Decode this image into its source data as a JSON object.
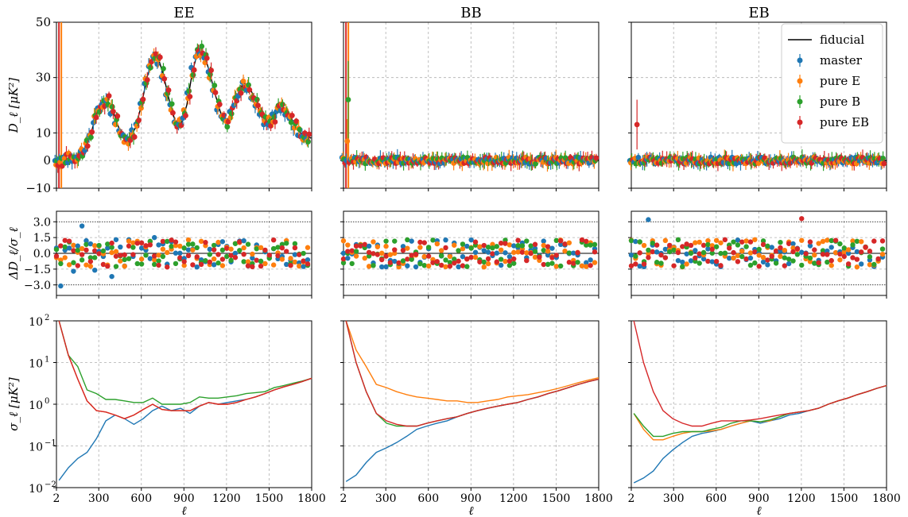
{
  "colors": {
    "master": "#1f77b4",
    "pureE": "#ff7f0e",
    "pureB": "#2ca02c",
    "pureEB": "#d62728",
    "fiducial": "#000000",
    "grid": "#b0b0b0"
  },
  "columns": [
    "EE",
    "BB",
    "EB"
  ],
  "xaxis": {
    "label": "ℓ",
    "ticks": [
      2,
      300,
      600,
      900,
      1200,
      1500,
      1800
    ],
    "range": [
      2,
      1800
    ]
  },
  "rows": {
    "spectrum": {
      "ylabel": "D_ℓ [μK²]",
      "ylim": [
        -10,
        50
      ],
      "ticks": [
        -10,
        0,
        10,
        30,
        50
      ]
    },
    "residual": {
      "ylabel": "ΔD_ℓ/σ_ℓ",
      "ylim": [
        -4,
        4
      ],
      "ticks": [
        -3.0,
        -1.5,
        0.0,
        1.5,
        3.0
      ]
    },
    "error": {
      "ylabel": "σ_ℓ [μK²]",
      "scale": "log",
      "ylim": [
        0.01,
        100
      ],
      "ticks": [
        "10^-2",
        "10^-1",
        "10^0",
        "10^1",
        "10^2"
      ]
    }
  },
  "legend": {
    "placement": "top-right of EB panel",
    "entries": [
      "fiducial",
      "master",
      "pure E",
      "pure B",
      "pure EB"
    ]
  },
  "chart_data": {
    "type": "scatter",
    "ell": [
      2,
      32,
      62,
      92,
      122,
      152,
      182,
      212,
      242,
      272,
      302,
      332,
      362,
      392,
      422,
      452,
      482,
      512,
      542,
      572,
      602,
      632,
      662,
      692,
      722,
      752,
      782,
      812,
      842,
      872,
      902,
      932,
      962,
      992,
      1022,
      1052,
      1082,
      1112,
      1142,
      1172,
      1202,
      1232,
      1262,
      1292,
      1322,
      1352,
      1382,
      1412,
      1442,
      1472,
      1502,
      1532,
      1562,
      1592,
      1622,
      1652,
      1682,
      1712,
      1742,
      1772
    ],
    "EE": {
      "fiducial_ell": [
        2,
        60,
        120,
        160,
        200,
        240,
        280,
        320,
        360,
        400,
        440,
        480,
        520,
        560,
        600,
        640,
        680,
        720,
        760,
        800,
        840,
        880,
        920,
        960,
        1000,
        1040,
        1080,
        1120,
        1160,
        1200,
        1240,
        1280,
        1320,
        1360,
        1400,
        1440,
        1480,
        1520,
        1560,
        1600,
        1640,
        1680,
        1720,
        1760,
        1800
      ],
      "fiducial_D": [
        0,
        0.5,
        1,
        2,
        4,
        9,
        16,
        21,
        22,
        18,
        12,
        8,
        8,
        12,
        20,
        30,
        37,
        37,
        30,
        21,
        14,
        13,
        20,
        32,
        40,
        39,
        32,
        24,
        17,
        14,
        18,
        24,
        28,
        27,
        22,
        17,
        14,
        15,
        18,
        19,
        17,
        13,
        10,
        9,
        8
      ],
      "master_D": [
        0,
        0.5,
        -2,
        3,
        5,
        14,
        21,
        16,
        7,
        11,
        29,
        37,
        28,
        13,
        33,
        33,
        18,
        13,
        24,
        30,
        25,
        16,
        12,
        16,
        18,
        20
      ],
      "master_resid": [
        0.5,
        -3.1,
        0.3,
        0.5,
        -1.7,
        0.7,
        2.6,
        1.2,
        0.9,
        -1.6,
        0.2,
        -0.3,
        0.5,
        -2.2,
        1.3,
        0.6,
        -1.2,
        1.3,
        -0.3,
        1.0,
        0.5,
        0.3,
        -0.5,
        1.5,
        0.8,
        0.9
      ]
    },
    "BB": {
      "fiducial_D": 0,
      "pureE_D_first": 7,
      "pureB_D_first": 22,
      "error_pureE": [
        20,
        2.5,
        1.3,
        1.1,
        1.2,
        1.6,
        2.6,
        4.2
      ]
    },
    "EB": {
      "fiducial_D": 0,
      "pureEB_D_first": 13
    },
    "error_curves": {
      "EE": {
        "master": [
          0.015,
          0.03,
          0.05,
          0.07,
          0.15,
          0.4,
          0.55,
          0.45,
          0.33,
          0.45,
          0.7,
          0.9,
          0.7,
          0.8,
          0.6,
          0.9,
          1.1,
          1.0,
          1.1,
          1.2,
          1.3,
          1.5,
          1.8,
          2.2,
          2.6,
          3.0,
          3.5,
          4.2
        ],
        "pureE": [
          100,
          15,
          4,
          1.2,
          0.7,
          0.65,
          0.55,
          0.45,
          0.55,
          0.75,
          1.0,
          0.75,
          0.7,
          0.7,
          0.7,
          0.9,
          1.1,
          1.0,
          1.0,
          1.1,
          1.3,
          1.5,
          1.8,
          2.2,
          2.6,
          3.0,
          3.5,
          4.2
        ],
        "pureB": [
          100,
          15,
          8,
          2.2,
          1.8,
          1.3,
          1.3,
          1.2,
          1.1,
          1.1,
          1.4,
          1.0,
          1.0,
          1.0,
          1.1,
          1.5,
          1.4,
          1.4,
          1.5,
          1.6,
          1.8,
          1.9,
          2.0,
          2.5,
          2.8,
          3.2,
          3.6,
          4.2
        ],
        "pureEB": [
          100,
          15,
          4,
          1.2,
          0.7,
          0.65,
          0.55,
          0.45,
          0.55,
          0.75,
          1.0,
          0.75,
          0.7,
          0.7,
          0.7,
          0.9,
          1.1,
          1.0,
          1.0,
          1.1,
          1.3,
          1.5,
          1.8,
          2.2,
          2.6,
          3.0,
          3.5,
          4.2
        ]
      },
      "BB": {
        "master": [
          0.014,
          0.02,
          0.04,
          0.07,
          0.09,
          0.12,
          0.17,
          0.25,
          0.3,
          0.35,
          0.4,
          0.5,
          0.6,
          0.7,
          0.8,
          0.9,
          1.0,
          1.1,
          1.3,
          1.5,
          1.8,
          2.1,
          2.5,
          3.0,
          3.5,
          4.0
        ],
        "pureE": [
          100,
          20,
          8,
          3,
          2.5,
          2.0,
          1.7,
          1.5,
          1.4,
          1.3,
          1.2,
          1.2,
          1.1,
          1.1,
          1.2,
          1.3,
          1.5,
          1.6,
          1.7,
          1.9,
          2.1,
          2.4,
          2.8,
          3.3,
          3.8,
          4.3
        ],
        "pureB": [
          100,
          10,
          2,
          0.6,
          0.35,
          0.3,
          0.3,
          0.3,
          0.35,
          0.4,
          0.45,
          0.5,
          0.6,
          0.7,
          0.8,
          0.9,
          1.0,
          1.1,
          1.3,
          1.5,
          1.8,
          2.1,
          2.5,
          3.0,
          3.5,
          4.0
        ],
        "pureEB": [
          100,
          10,
          2,
          0.6,
          0.4,
          0.33,
          0.3,
          0.3,
          0.35,
          0.4,
          0.45,
          0.5,
          0.6,
          0.7,
          0.8,
          0.9,
          1.0,
          1.1,
          1.3,
          1.5,
          1.8,
          2.1,
          2.5,
          3.0,
          3.5,
          4.0
        ]
      },
      "EB": {
        "master": [
          0.013,
          0.017,
          0.025,
          0.05,
          0.08,
          0.12,
          0.17,
          0.2,
          0.22,
          0.25,
          0.3,
          0.35,
          0.4,
          0.35,
          0.4,
          0.45,
          0.55,
          0.6,
          0.7,
          0.8,
          1.0,
          1.2,
          1.4,
          1.7,
          2.0,
          2.4,
          2.8
        ],
        "pureE": [
          0.6,
          0.25,
          0.14,
          0.14,
          0.17,
          0.2,
          0.22,
          0.22,
          0.23,
          0.25,
          0.3,
          0.35,
          0.4,
          0.38,
          0.4,
          0.5,
          0.6,
          0.65,
          0.7,
          0.8,
          1.0,
          1.2,
          1.4,
          1.7,
          2.0,
          2.4,
          2.8
        ],
        "pureB": [
          0.6,
          0.3,
          0.17,
          0.17,
          0.2,
          0.22,
          0.22,
          0.22,
          0.25,
          0.28,
          0.35,
          0.4,
          0.4,
          0.38,
          0.42,
          0.5,
          0.6,
          0.65,
          0.7,
          0.8,
          1.0,
          1.2,
          1.4,
          1.7,
          2.0,
          2.4,
          2.8
        ],
        "pureEB": [
          100,
          10,
          2,
          0.7,
          0.45,
          0.35,
          0.3,
          0.3,
          0.35,
          0.4,
          0.4,
          0.4,
          0.42,
          0.45,
          0.5,
          0.55,
          0.6,
          0.65,
          0.7,
          0.8,
          1.0,
          1.2,
          1.4,
          1.7,
          2.0,
          2.4,
          2.8
        ]
      }
    }
  }
}
